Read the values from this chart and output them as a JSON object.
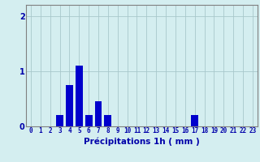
{
  "hours": [
    0,
    1,
    2,
    3,
    4,
    5,
    6,
    7,
    8,
    9,
    10,
    11,
    12,
    13,
    14,
    15,
    16,
    17,
    18,
    19,
    20,
    21,
    22,
    23
  ],
  "values": [
    0,
    0,
    0,
    0.2,
    0.75,
    1.1,
    0.2,
    0.45,
    0.2,
    0,
    0,
    0,
    0,
    0,
    0,
    0,
    0,
    0.2,
    0,
    0,
    0,
    0,
    0,
    0
  ],
  "bar_color": "#0000cc",
  "background_color": "#d4eef0",
  "grid_color": "#a8c8cc",
  "axis_color": "#808080",
  "xlabel": "Précipitations 1h ( mm )",
  "ylim": [
    0,
    2.2
  ],
  "yticks": [
    0,
    1,
    2
  ],
  "xlim": [
    -0.5,
    23.5
  ],
  "bar_width": 0.75,
  "xlabel_fontsize": 7.5,
  "tick_fontsize": 5.5,
  "tick_color": "#0000aa",
  "label_color": "#0000aa"
}
